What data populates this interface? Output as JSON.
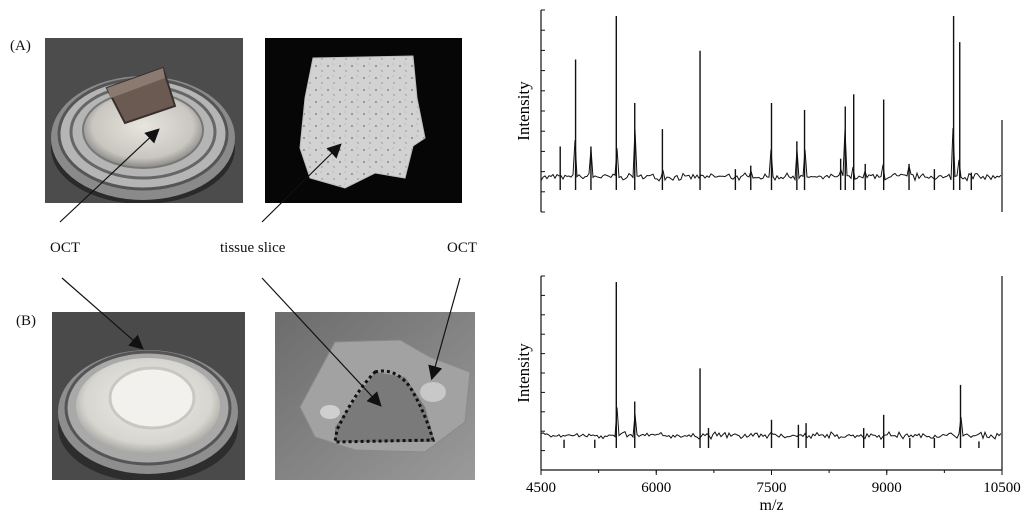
{
  "figure": {
    "panel_a_label": "(A)",
    "panel_b_label": "(B)",
    "label_oct_left": "OCT",
    "label_tissue": "tissue slice",
    "label_oct_right": "OCT"
  },
  "photos": [
    {
      "name": "photo-a-target-oct"
    },
    {
      "name": "photo-a-tissue-slice"
    },
    {
      "name": "photo-b-target-oct"
    },
    {
      "name": "photo-b-tissue-on-oct"
    }
  ],
  "chart_data": [
    {
      "type": "line",
      "ylabel": "Intensity",
      "xlim": [
        4500,
        10500
      ],
      "peaks": [
        [
          4750,
          0.25
        ],
        [
          4950,
          0.75
        ],
        [
          5150,
          0.25
        ],
        [
          5480,
          1.0
        ],
        [
          5720,
          0.5
        ],
        [
          6080,
          0.35
        ],
        [
          6570,
          0.8
        ],
        [
          7030,
          0.12
        ],
        [
          7230,
          0.14
        ],
        [
          7500,
          0.5
        ],
        [
          7830,
          0.28
        ],
        [
          7930,
          0.46
        ],
        [
          8400,
          0.18
        ],
        [
          8460,
          0.48
        ],
        [
          8570,
          0.55
        ],
        [
          8720,
          0.15
        ],
        [
          8960,
          0.52
        ],
        [
          9290,
          0.15
        ],
        [
          9620,
          0.12
        ],
        [
          9870,
          1.0
        ],
        [
          9950,
          0.85
        ],
        [
          10100,
          0.1
        ]
      ]
    },
    {
      "type": "line",
      "ylabel": "Intensity",
      "xlabel": "m/z",
      "xlim": [
        4500,
        10500
      ],
      "xticks": [
        "4500",
        "6000",
        "7500",
        "9000",
        "10500"
      ],
      "peaks": [
        [
          4800,
          0.05
        ],
        [
          5200,
          0.05
        ],
        [
          5480,
          1.0
        ],
        [
          5720,
          0.28
        ],
        [
          6570,
          0.48
        ],
        [
          6680,
          0.12
        ],
        [
          7500,
          0.17
        ],
        [
          7850,
          0.14
        ],
        [
          7950,
          0.15
        ],
        [
          8700,
          0.12
        ],
        [
          8960,
          0.2
        ],
        [
          9300,
          0.06
        ],
        [
          9620,
          0.06
        ],
        [
          9960,
          0.38
        ],
        [
          10200,
          0.04
        ]
      ]
    }
  ]
}
